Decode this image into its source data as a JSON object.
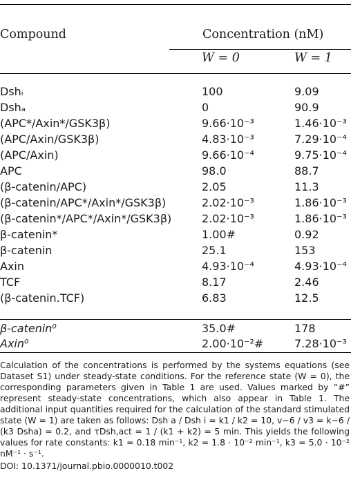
{
  "header": {
    "compound": "Compound",
    "concentration": "Concentration (nM)",
    "w0": "W = 0",
    "w1": "W = 1"
  },
  "rows": [
    {
      "compound": "Dshᵢ",
      "w0": "100",
      "w1": "9.09"
    },
    {
      "compound": "Dshₐ",
      "w0": "0",
      "w1": "90.9"
    },
    {
      "compound": "(APC*/Axin*/GSK3β)",
      "w0": "9.66·10⁻³",
      "w1": "1.46·10⁻³"
    },
    {
      "compound": "(APC/Axin/GSK3β)",
      "w0": "4.83·10⁻³",
      "w1": "7.29·10⁻⁴"
    },
    {
      "compound": "(APC/Axin)",
      "w0": "9.66·10⁻⁴",
      "w1": "9.75·10⁻⁴"
    },
    {
      "compound": "APC",
      "w0": "98.0",
      "w1": "88.7"
    },
    {
      "compound": "(β-catenin/APC)",
      "w0": "2.05",
      "w1": "11.3"
    },
    {
      "compound": "(β-catenin/APC*/Axin*/GSK3β)",
      "w0": "2.02·10⁻³",
      "w1": "1.86·10⁻³"
    },
    {
      "compound": "(β-catenin*/APC*/Axin*/GSK3β)",
      "w0": "2.02·10⁻³",
      "w1": "1.86·10⁻³"
    },
    {
      "compound": "β-catenin*",
      "w0": "1.00#",
      "w1": "0.92"
    },
    {
      "compound": "β-catenin",
      "w0": "25.1",
      "w1": "153"
    },
    {
      "compound": "Axin",
      "w0": "4.93·10⁻⁴",
      "w1": "4.93·10⁻⁴"
    },
    {
      "compound": "TCF",
      "w0": "8.17",
      "w1": "2.46"
    },
    {
      "compound": "(β-catenin.TCF)",
      "w0": "6.83",
      "w1": "12.5"
    }
  ],
  "totals": [
    {
      "compound": "β-catenin⁰",
      "w0": "35.0#",
      "w1": "178"
    },
    {
      "compound": "Axin⁰",
      "w0": "2.00·10⁻²#",
      "w1": "7.28·10⁻³"
    }
  ],
  "footnote": "Calculation of the concentrations is performed by the systems equations (see Dataset S1) under steady-state conditions. For the reference state (W = 0), the corresponding parameters given in Table 1 are used. Values marked by “#” represent steady-state concentrations, which also appear in Table 1. The additional input quantities required for the calculation of the standard stimulated state (W = 1) are taken as follows: Dsh a / Dsh i = k1 / k2 = 10, v−6 / v3 = k−6 / (k3 Dsha) = 0.2, and τDsh,act = 1 / (k1 + k2) = 5 min. This yields the following values for rate constants: k1 = 0.18 min⁻¹, k2 = 1.8 · 10⁻² min⁻¹, k3 = 5.0 · 10⁻² nM⁻¹ · s⁻¹.",
  "doi": "DOI: 10.1371/journal.pbio.0000010.t002"
}
